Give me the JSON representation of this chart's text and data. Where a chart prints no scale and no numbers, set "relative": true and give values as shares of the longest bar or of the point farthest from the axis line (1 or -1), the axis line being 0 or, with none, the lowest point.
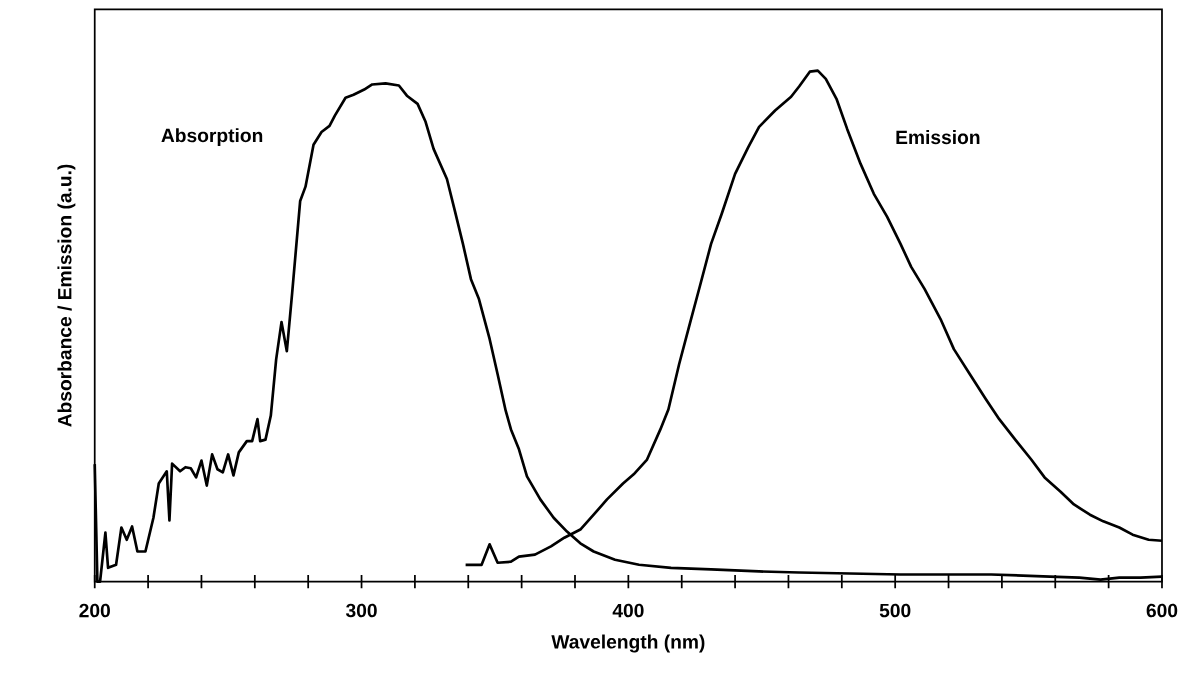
{
  "chart_data": {
    "type": "line",
    "relative": true,
    "xlabel": "Wavelength  (nm)",
    "ylabel": "Absorbance  /  Emission  (a.u.)",
    "xlim": [
      200,
      600
    ],
    "xticks": [
      200,
      {
        "value": 220,
        "label": null
      },
      {
        "value": 240,
        "label": null
      },
      {
        "value": 260,
        "label": null
      },
      {
        "value": 280,
        "label": null
      },
      300,
      {
        "value": 320,
        "label": null
      },
      {
        "value": 340,
        "label": null
      },
      {
        "value": 360,
        "label": null
      },
      {
        "value": 380,
        "label": null
      },
      400,
      {
        "value": 420,
        "label": null
      },
      {
        "value": 440,
        "label": null
      },
      {
        "value": 460,
        "label": null
      },
      {
        "value": 480,
        "label": null
      },
      500,
      {
        "value": 520,
        "label": null
      },
      {
        "value": 540,
        "label": null
      },
      {
        "value": 560,
        "label": null
      },
      {
        "value": 580,
        "label": null
      },
      600
    ],
    "series": [
      {
        "name": "Absorption",
        "color": "#000000",
        "x": [
          200,
          201,
          202,
          204,
          205,
          208,
          210,
          212,
          214,
          216,
          219,
          222,
          224,
          227,
          228,
          229,
          232,
          234,
          236,
          238,
          240,
          242,
          244,
          246,
          248,
          250,
          252,
          254,
          257,
          259,
          261,
          262,
          264,
          266,
          268,
          270,
          272,
          274,
          277,
          279,
          282,
          285,
          288,
          290,
          294,
          297,
          301,
          304,
          309,
          314,
          317,
          321,
          324,
          327,
          332,
          335,
          338,
          341,
          344,
          348,
          351,
          354,
          356,
          359,
          362,
          367,
          372,
          377,
          382,
          387,
          395,
          404,
          416,
          431,
          449,
          464,
          483,
          502,
          521,
          536,
          547,
          558,
          569,
          577,
          584,
          592,
          600
        ],
        "values": [
          0.23,
          0,
          0,
          0.096,
          0.027,
          0.033,
          0.106,
          0.082,
          0.108,
          0.059,
          0.059,
          0.125,
          0.192,
          0.216,
          0.12,
          0.231,
          0.216,
          0.224,
          0.222,
          0.204,
          0.237,
          0.188,
          0.249,
          0.22,
          0.214,
          0.249,
          0.208,
          0.253,
          0.275,
          0.275,
          0.318,
          0.275,
          0.278,
          0.325,
          0.435,
          0.508,
          0.451,
          0.565,
          0.745,
          0.773,
          0.855,
          0.88,
          0.892,
          0.912,
          0.947,
          0.953,
          0.963,
          0.973,
          0.975,
          0.971,
          0.951,
          0.935,
          0.9,
          0.847,
          0.788,
          0.725,
          0.661,
          0.592,
          0.553,
          0.475,
          0.406,
          0.335,
          0.298,
          0.259,
          0.206,
          0.161,
          0.125,
          0.098,
          0.075,
          0.059,
          0.043,
          0.033,
          0.027,
          0.024,
          0.02,
          0.018,
          0.016,
          0.014,
          0.014,
          0.014,
          0.012,
          0.01,
          0.008,
          0.004,
          0.008,
          0.008,
          0.01
        ]
      },
      {
        "name": "Emission",
        "color": "#000000",
        "x": [
          339,
          345,
          348,
          351,
          356,
          359,
          365,
          371,
          376,
          382,
          387,
          392,
          398,
          402,
          407,
          412,
          415,
          419,
          423,
          427,
          431,
          435,
          440,
          445,
          449,
          455,
          461,
          464,
          468,
          471,
          474,
          478,
          482,
          487,
          492,
          497,
          502,
          506,
          511,
          517,
          522,
          528,
          534,
          539,
          545,
          551,
          556,
          562,
          567,
          573,
          578,
          584,
          589,
          595,
          600
        ],
        "values": [
          0.033,
          0.033,
          0.073,
          0.037,
          0.039,
          0.049,
          0.053,
          0.069,
          0.086,
          0.102,
          0.131,
          0.161,
          0.192,
          0.21,
          0.239,
          0.298,
          0.337,
          0.425,
          0.504,
          0.582,
          0.661,
          0.72,
          0.798,
          0.851,
          0.89,
          0.922,
          0.949,
          0.969,
          0.998,
          1,
          0.984,
          0.945,
          0.886,
          0.818,
          0.759,
          0.714,
          0.661,
          0.616,
          0.573,
          0.514,
          0.455,
          0.406,
          0.357,
          0.318,
          0.278,
          0.239,
          0.204,
          0.176,
          0.151,
          0.131,
          0.118,
          0.106,
          0.092,
          0.082,
          0.08
        ]
      }
    ]
  }
}
